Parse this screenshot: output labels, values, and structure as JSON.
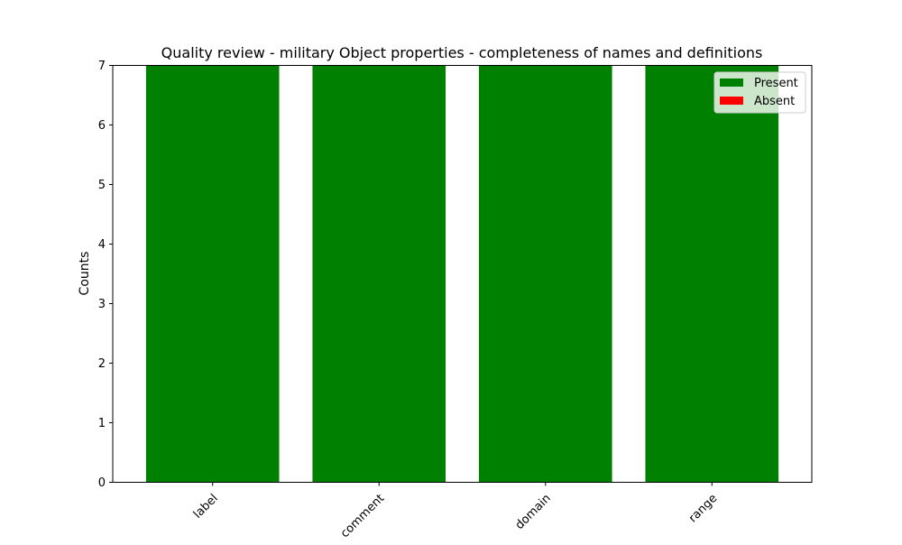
{
  "chart_data": {
    "type": "bar",
    "stacked": true,
    "title": "Quality review - military Object properties - completeness of names and definitions",
    "xlabel": "",
    "ylabel": "Counts",
    "categories": [
      "label",
      "comment",
      "domain",
      "range"
    ],
    "series": [
      {
        "name": "Present",
        "color": "#008000",
        "values": [
          7,
          7,
          7,
          7
        ]
      },
      {
        "name": "Absent",
        "color": "#ff0000",
        "values": [
          0,
          0,
          0,
          0
        ]
      }
    ],
    "ylim": [
      0,
      7
    ],
    "yticks": [
      0,
      1,
      2,
      3,
      4,
      5,
      6,
      7
    ],
    "grid": false,
    "legend_position": "top-right"
  }
}
